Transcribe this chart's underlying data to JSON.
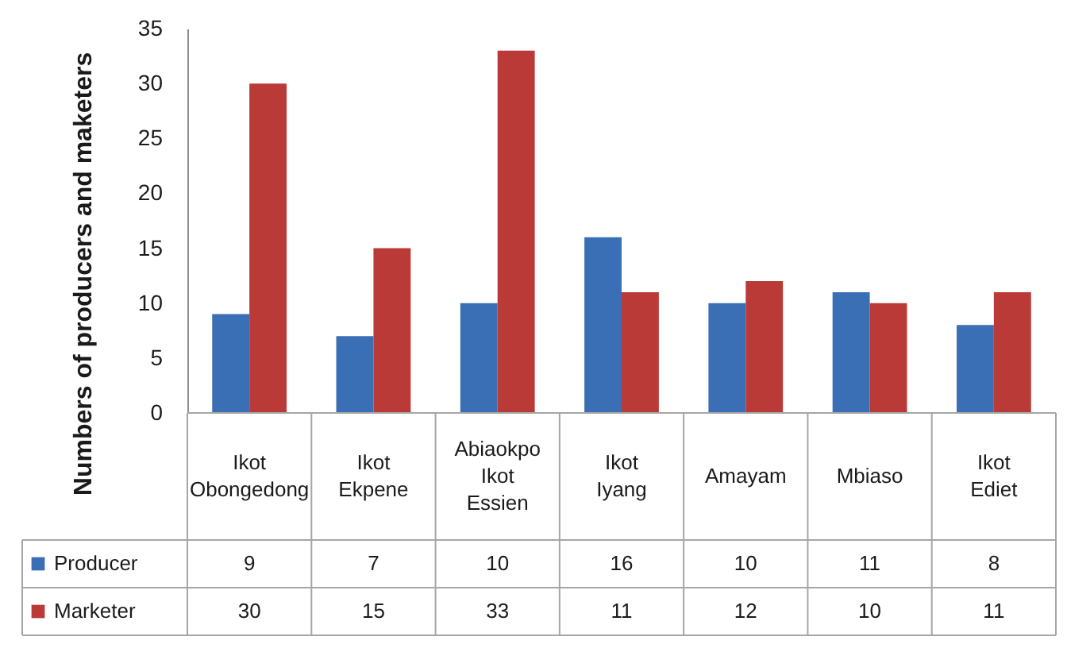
{
  "chart_data": {
    "type": "bar",
    "ylabel": "Numbers of producers and maketers",
    "categories": [
      "Ikot Obongedong",
      "Ikot Ekpene",
      "Abiaokpo Ikot Essien",
      "Ikot Iyang",
      "Amayam",
      "Mbiaso",
      "Ikot Ediet"
    ],
    "series": [
      {
        "name": "Producer",
        "color": "#3b6fb5",
        "values": [
          9,
          7,
          10,
          16,
          10,
          11,
          8
        ]
      },
      {
        "name": "Marketer",
        "color": "#b93a37",
        "values": [
          30,
          15,
          33,
          11,
          12,
          10,
          11
        ]
      }
    ],
    "ylim": [
      0,
      35
    ],
    "yticks": [
      0,
      5,
      10,
      15,
      20,
      25,
      30,
      35
    ],
    "grid": false,
    "legend": "bottom left",
    "data_labels": true
  }
}
